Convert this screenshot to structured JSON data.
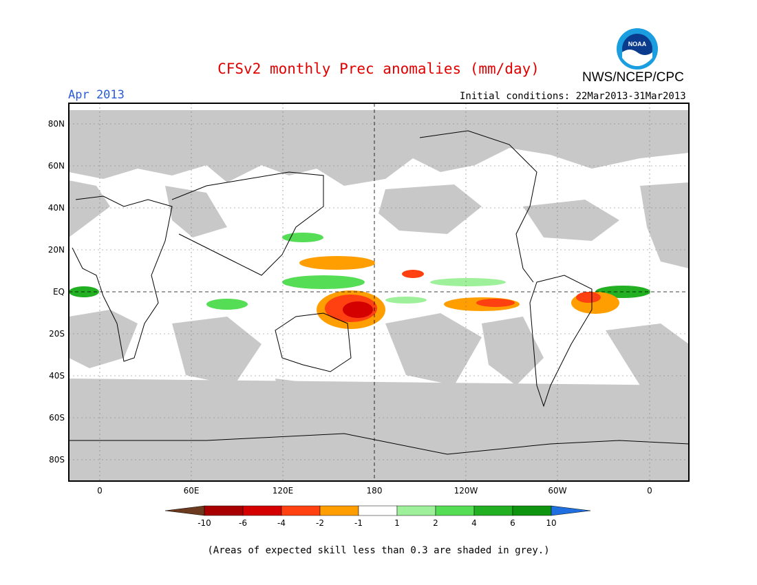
{
  "header": {
    "title": "CFSv2 monthly Prec anomalies (mm/day)",
    "agency": "NWS/NCEP/CPC",
    "logo_text": "NOAA",
    "month": "Apr 2013",
    "initial_conditions": "Initial conditions: 22Mar2013-31Mar2013"
  },
  "map": {
    "lat_labels": [
      "80N",
      "60N",
      "40N",
      "20N",
      "EQ",
      "20S",
      "40S",
      "60S",
      "80S"
    ],
    "lon_labels": [
      "0",
      "60E",
      "120E",
      "180",
      "120W",
      "60W",
      "0"
    ],
    "grey_meaning": "low skill"
  },
  "colorbar": {
    "labels": [
      "-10",
      "-6",
      "-4",
      "-2",
      "-1",
      "1",
      "2",
      "4",
      "6",
      "10"
    ],
    "colors": [
      "#6b3a1f",
      "#a80000",
      "#d40000",
      "#ff4010",
      "#ff9e00",
      "#ffffff",
      "#9ff09a",
      "#55dd55",
      "#22b022",
      "#0f9410",
      "#1f6fe0"
    ]
  },
  "footnote": "(Areas of expected skill less than 0.3 are shaded in grey.)",
  "legend_colors": {
    "grey": "#c8c8c8",
    "title_red": "#e00000",
    "month_blue": "#2a5bd7"
  }
}
